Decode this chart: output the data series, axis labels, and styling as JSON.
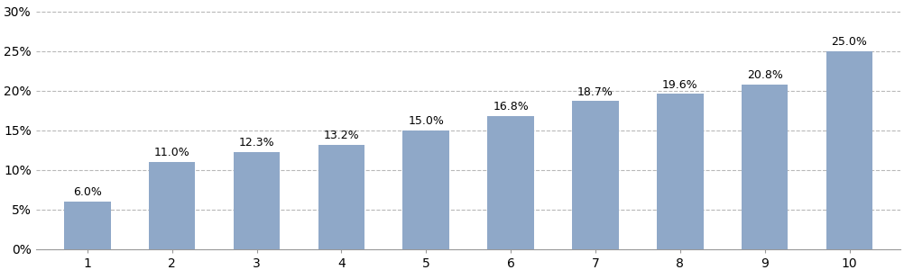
{
  "categories": [
    1,
    2,
    3,
    4,
    5,
    6,
    7,
    8,
    9,
    10
  ],
  "values": [
    6.0,
    11.0,
    12.3,
    13.2,
    15.0,
    16.8,
    18.7,
    19.6,
    20.8,
    25.0
  ],
  "bar_color": "#8fa8c8",
  "yticks": [
    0,
    5,
    10,
    15,
    20,
    25,
    30
  ],
  "ylim": [
    0,
    31
  ],
  "grid_color": "#b8b8b8",
  "label_fontsize": 9,
  "tick_fontsize": 10,
  "bar_width": 0.55,
  "background_color": "#ffffff"
}
